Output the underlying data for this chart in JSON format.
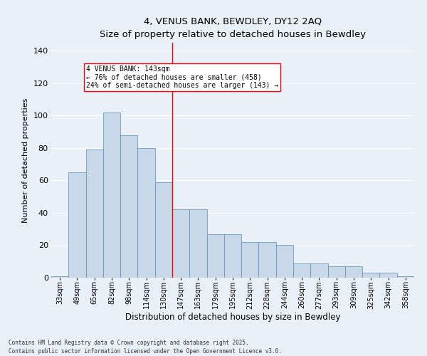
{
  "title": "4, VENUS BANK, BEWDLEY, DY12 2AQ",
  "subtitle": "Size of property relative to detached houses in Bewdley",
  "xlabel": "Distribution of detached houses by size in Bewdley",
  "ylabel": "Number of detached properties",
  "categories": [
    "33sqm",
    "49sqm",
    "65sqm",
    "82sqm",
    "98sqm",
    "114sqm",
    "130sqm",
    "147sqm",
    "163sqm",
    "179sqm",
    "195sqm",
    "212sqm",
    "228sqm",
    "244sqm",
    "260sqm",
    "277sqm",
    "293sqm",
    "309sqm",
    "325sqm",
    "342sqm",
    "358sqm"
  ],
  "values": [
    1,
    65,
    79,
    102,
    88,
    80,
    59,
    42,
    42,
    27,
    27,
    22,
    22,
    20,
    9,
    9,
    7,
    7,
    3,
    3,
    1
  ],
  "bar_color": "#c8d8e8",
  "bar_edge_color": "#5a8ab5",
  "vline_x_index": 7,
  "vline_color": "red",
  "annotation_text": "4 VENUS BANK: 143sqm\n← 76% of detached houses are smaller (458)\n24% of semi-detached houses are larger (143) →",
  "annotation_box_color": "white",
  "annotation_box_edge_color": "red",
  "ylim": [
    0,
    145
  ],
  "yticks": [
    0,
    20,
    40,
    60,
    80,
    100,
    120,
    140
  ],
  "footnote": "Contains HM Land Registry data © Crown copyright and database right 2025.\nContains public sector information licensed under the Open Government Licence v3.0.",
  "background_color": "#eaf0f8",
  "grid_color": "white"
}
